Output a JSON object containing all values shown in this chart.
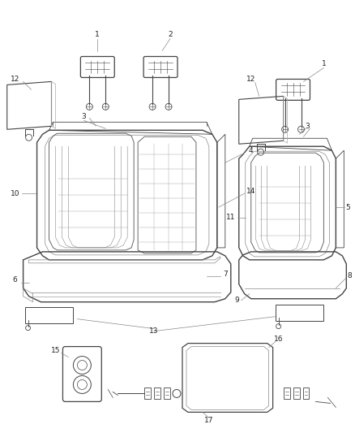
{
  "bg_color": "#ffffff",
  "line_color": "#444444",
  "label_color": "#222222",
  "leader_color": "#888888",
  "fig_width": 4.38,
  "fig_height": 5.33,
  "dpi": 100,
  "label_fs": 6.5
}
